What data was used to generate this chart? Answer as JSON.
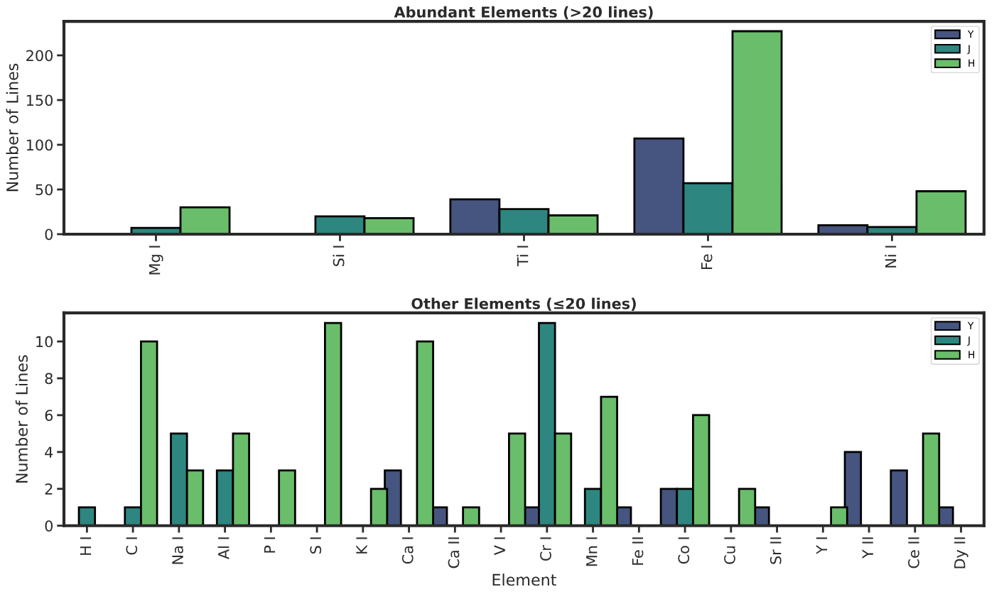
{
  "chart_data": [
    {
      "type": "bar",
      "title": "Abundant Elements (>20 lines)",
      "ylabel": "Number of Lines",
      "categories": [
        "Mg I",
        "Si I",
        "Ti I",
        "Fe I",
        "Ni I"
      ],
      "series": [
        {
          "name": "Y",
          "color": "#46557f",
          "values": [
            null,
            null,
            39,
            107,
            10
          ]
        },
        {
          "name": "J",
          "color": "#2d867f",
          "values": [
            7,
            20,
            28,
            57,
            8
          ]
        },
        {
          "name": "H",
          "color": "#6abd6a",
          "values": [
            30,
            18,
            21,
            227,
            48
          ]
        }
      ],
      "ylim": [
        0,
        238
      ],
      "yticks": [
        0,
        50,
        100,
        150,
        200
      ],
      "legend": "top right",
      "grid": false
    },
    {
      "type": "bar",
      "title": "Other Elements (≤20 lines)",
      "xlabel": "Element",
      "ylabel": "Number of Lines",
      "categories": [
        "H I",
        "C I",
        "Na I",
        "Al I",
        "P I",
        "S I",
        "K I",
        "Ca I",
        "Ca II",
        "V I",
        "Cr I",
        "Mn I",
        "Fe II",
        "Co I",
        "Cu I",
        "Sr II",
        "Y I",
        "Y II",
        "Ce II",
        "Dy II"
      ],
      "series": [
        {
          "name": "Y",
          "color": "#46557f",
          "values": [
            null,
            null,
            null,
            null,
            null,
            null,
            null,
            3,
            1,
            null,
            1,
            null,
            1,
            2,
            null,
            1,
            null,
            4,
            3,
            1
          ]
        },
        {
          "name": "J",
          "color": "#2d867f",
          "values": [
            1,
            1,
            5,
            3,
            null,
            null,
            null,
            null,
            null,
            null,
            11,
            2,
            null,
            2,
            null,
            null,
            null,
            null,
            null,
            null
          ]
        },
        {
          "name": "H",
          "color": "#6abd6a",
          "values": [
            null,
            10,
            3,
            5,
            3,
            11,
            2,
            10,
            1,
            5,
            5,
            7,
            null,
            6,
            2,
            null,
            1,
            null,
            5,
            null
          ]
        }
      ],
      "ylim": [
        0,
        11.55
      ],
      "yticks": [
        0,
        2,
        4,
        6,
        8,
        10
      ],
      "legend": "top right",
      "grid": false
    }
  ]
}
